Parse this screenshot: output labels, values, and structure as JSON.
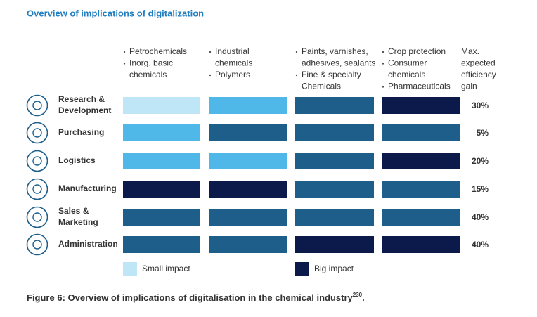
{
  "title": "Overview of implications of digitalization",
  "columns": [
    {
      "items": [
        [
          "Petrochemicals"
        ],
        [
          "Inorg. basic",
          "chemicals"
        ]
      ]
    },
    {
      "items": [
        [
          "Industrial",
          "chemicals"
        ],
        [
          "Polymers"
        ]
      ]
    },
    {
      "items": [
        [
          "Paints, varnishes,",
          "adhesives, sealants"
        ],
        [
          "Fine & specialty",
          "Chemicals"
        ]
      ]
    },
    {
      "items": [
        [
          "Crop protection"
        ],
        [
          "Consumer",
          "chemicals"
        ],
        [
          "Pharmaceuticals"
        ]
      ]
    }
  ],
  "gain_header": [
    "Max.",
    "expected",
    "efficiency",
    "gain"
  ],
  "rows": [
    {
      "label": [
        "Research &",
        "Development"
      ],
      "cells": [
        "#bfe6f7",
        "#4fb8e9",
        "#1d5f8a",
        "#0b1a4b"
      ],
      "gain": "30%"
    },
    {
      "label": [
        "Purchasing"
      ],
      "cells": [
        "#4fb8e9",
        "#1d5f8a",
        "#1d5f8a",
        "#1d5f8a"
      ],
      "gain": "5%"
    },
    {
      "label": [
        "Logistics"
      ],
      "cells": [
        "#4fb8e9",
        "#4fb8e9",
        "#1d5f8a",
        "#0b1a4b"
      ],
      "gain": "20%"
    },
    {
      "label": [
        "Manufacturing"
      ],
      "cells": [
        "#0b1a4b",
        "#0b1a4b",
        "#1d5f8a",
        "#1d5f8a"
      ],
      "gain": "15%"
    },
    {
      "label": [
        "Sales &",
        "Marketing"
      ],
      "cells": [
        "#1d5f8a",
        "#1d5f8a",
        "#1d5f8a",
        "#1d5f8a"
      ],
      "gain": "40%"
    },
    {
      "label": [
        "Administration"
      ],
      "cells": [
        "#1d5f8a",
        "#1d5f8a",
        "#0b1a4b",
        "#0b1a4b"
      ],
      "gain": "40%"
    }
  ],
  "legend": [
    {
      "label": "Small impact",
      "color": "#bfe6f7"
    },
    {
      "label": "Big impact",
      "color": "#0b1a4b"
    }
  ],
  "caption": {
    "text": "Figure 6: Overview of implications of digitalisation in the chemical industry",
    "footnote": "230",
    "end": "."
  }
}
